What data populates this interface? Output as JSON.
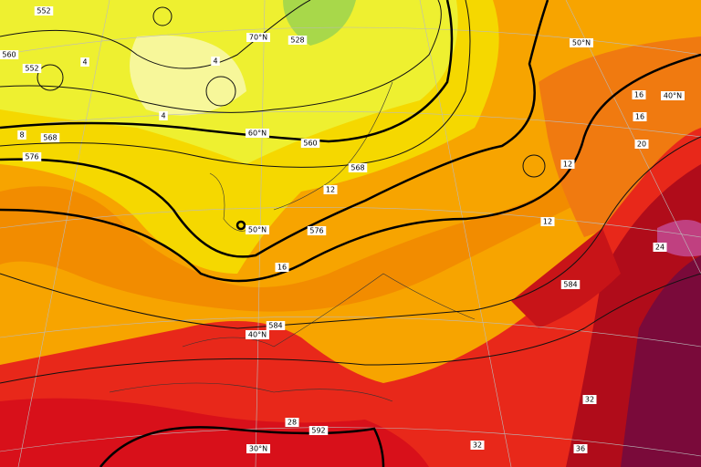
{
  "height_labels": [
    "552",
    "560",
    "552",
    "568",
    "576",
    "528",
    "560",
    "568",
    "576",
    "584",
    "584",
    "592"
  ],
  "temperature_labels": [
    "4",
    "4",
    "4",
    "8",
    "12",
    "12",
    "12",
    "16",
    "16",
    "16",
    "20",
    "24",
    "28",
    "32",
    "32",
    "36"
  ],
  "latitude_labels": [
    "70°N",
    "60°N",
    "50°N",
    "40°N",
    "30°N",
    "50°N",
    "40°N"
  ]
}
